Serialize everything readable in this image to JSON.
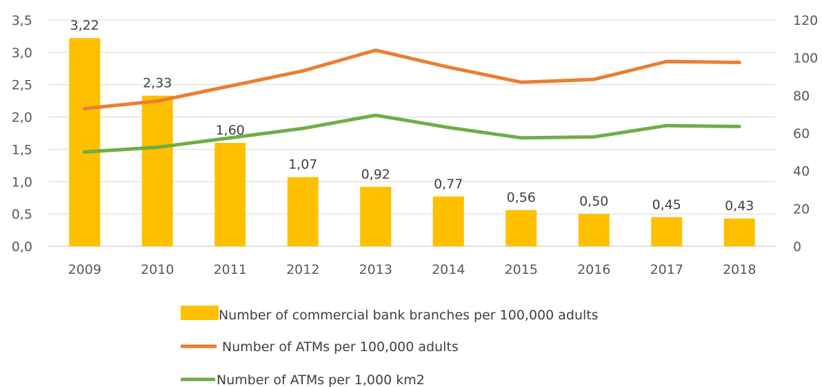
{
  "chart_data": {
    "type": "bar+line",
    "title": "",
    "categories": [
      "2009",
      "2010",
      "2011",
      "2012",
      "2013",
      "2014",
      "2015",
      "2016",
      "2017",
      "2018"
    ],
    "bar_series": {
      "name": "Number of commercial bank branches per 100,000 adults",
      "axis": "left",
      "color": "#FFC000",
      "values": [
        3.22,
        2.33,
        1.6,
        1.07,
        0.92,
        0.77,
        0.56,
        0.5,
        0.45,
        0.43
      ],
      "data_labels": [
        "3,22",
        "2,33",
        "1,60",
        "1,07",
        "0,92",
        "0,77",
        "0,56",
        "0,50",
        "0,45",
        "0,43"
      ]
    },
    "line_series": [
      {
        "name": "Number of ATMs per 100,000 adults",
        "axis": "right",
        "color": "#ED7D31",
        "values": [
          73,
          77,
          85,
          93,
          104,
          95,
          87,
          88.5,
          98,
          97.5
        ]
      },
      {
        "name": "Number of ATMs per 1,000 km2",
        "axis": "right",
        "color": "#70AD47",
        "values": [
          50,
          52.5,
          57.5,
          62.5,
          69.5,
          63,
          57.5,
          58,
          64,
          63.5
        ]
      }
    ],
    "left_axis": {
      "ylim": [
        0,
        3.5
      ],
      "ticks": [
        "0,0",
        "0,5",
        "1,0",
        "1,5",
        "2,0",
        "2,5",
        "3,0",
        "3,5"
      ]
    },
    "right_axis": {
      "ylim": [
        0,
        120
      ],
      "ticks": [
        "0",
        "20",
        "40",
        "60",
        "80",
        "100",
        "120"
      ]
    },
    "xlabel": "",
    "ylabel": "",
    "grid": true,
    "legend_position": "bottom"
  }
}
